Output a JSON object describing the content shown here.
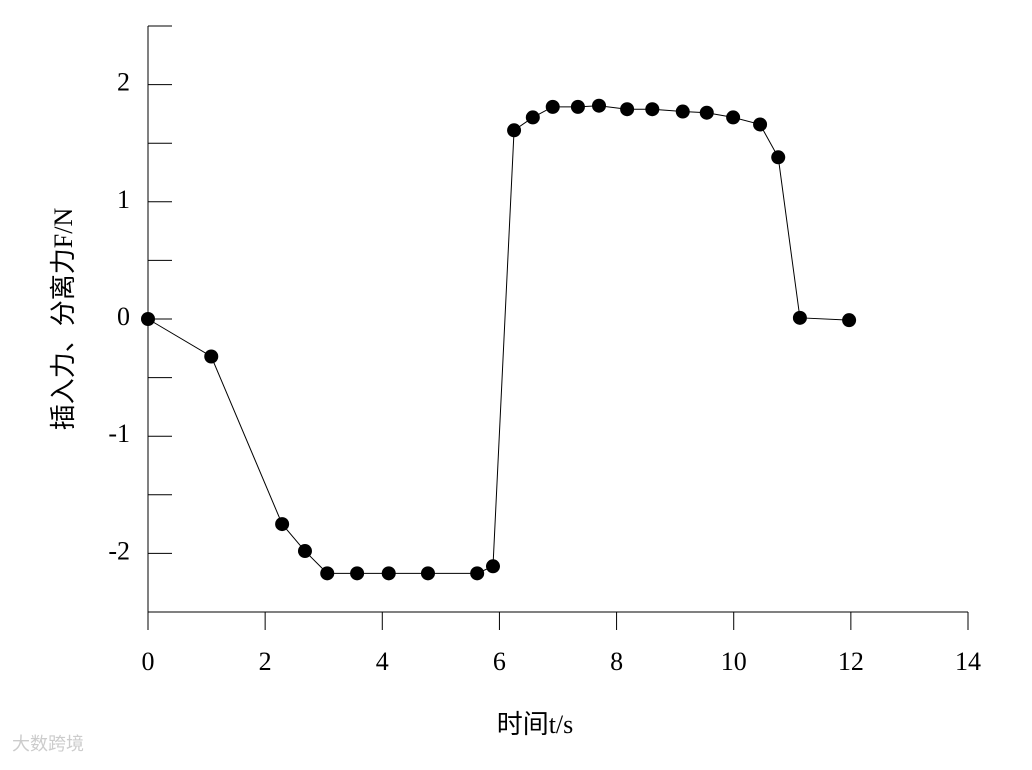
{
  "chart_data": {
    "type": "line",
    "xlabel": "时间t/s",
    "ylabel": "插入力、分离力F/N",
    "watermark": "大数跨境",
    "xlim": [
      0,
      14
    ],
    "xticks": [
      0,
      2,
      4,
      6,
      8,
      10,
      12,
      14
    ],
    "ylim": [
      -2.5,
      2.5
    ],
    "yticks": [
      -2,
      -1,
      0,
      1,
      2
    ],
    "yminorticks": [
      -2.5,
      -1.5,
      -0.5,
      0.5,
      1.5,
      2.5
    ],
    "grid": false,
    "series": [
      {
        "color": "#000000",
        "x": [
          0,
          1.08,
          2.29,
          2.68,
          3.06,
          3.57,
          4.11,
          4.78,
          5.62,
          5.89,
          6.25,
          6.57,
          6.91,
          7.34,
          7.7,
          8.18,
          8.61,
          9.13,
          9.54,
          9.99,
          10.45,
          10.76,
          11.13,
          11.97
        ],
        "values": [
          0,
          -0.32,
          -1.75,
          -1.98,
          -2.17,
          -2.17,
          -2.17,
          -2.17,
          -2.17,
          -2.11,
          1.61,
          1.72,
          1.81,
          1.81,
          1.82,
          1.79,
          1.79,
          1.77,
          1.76,
          1.72,
          1.66,
          1.38,
          0.01,
          -0.01
        ]
      }
    ]
  }
}
